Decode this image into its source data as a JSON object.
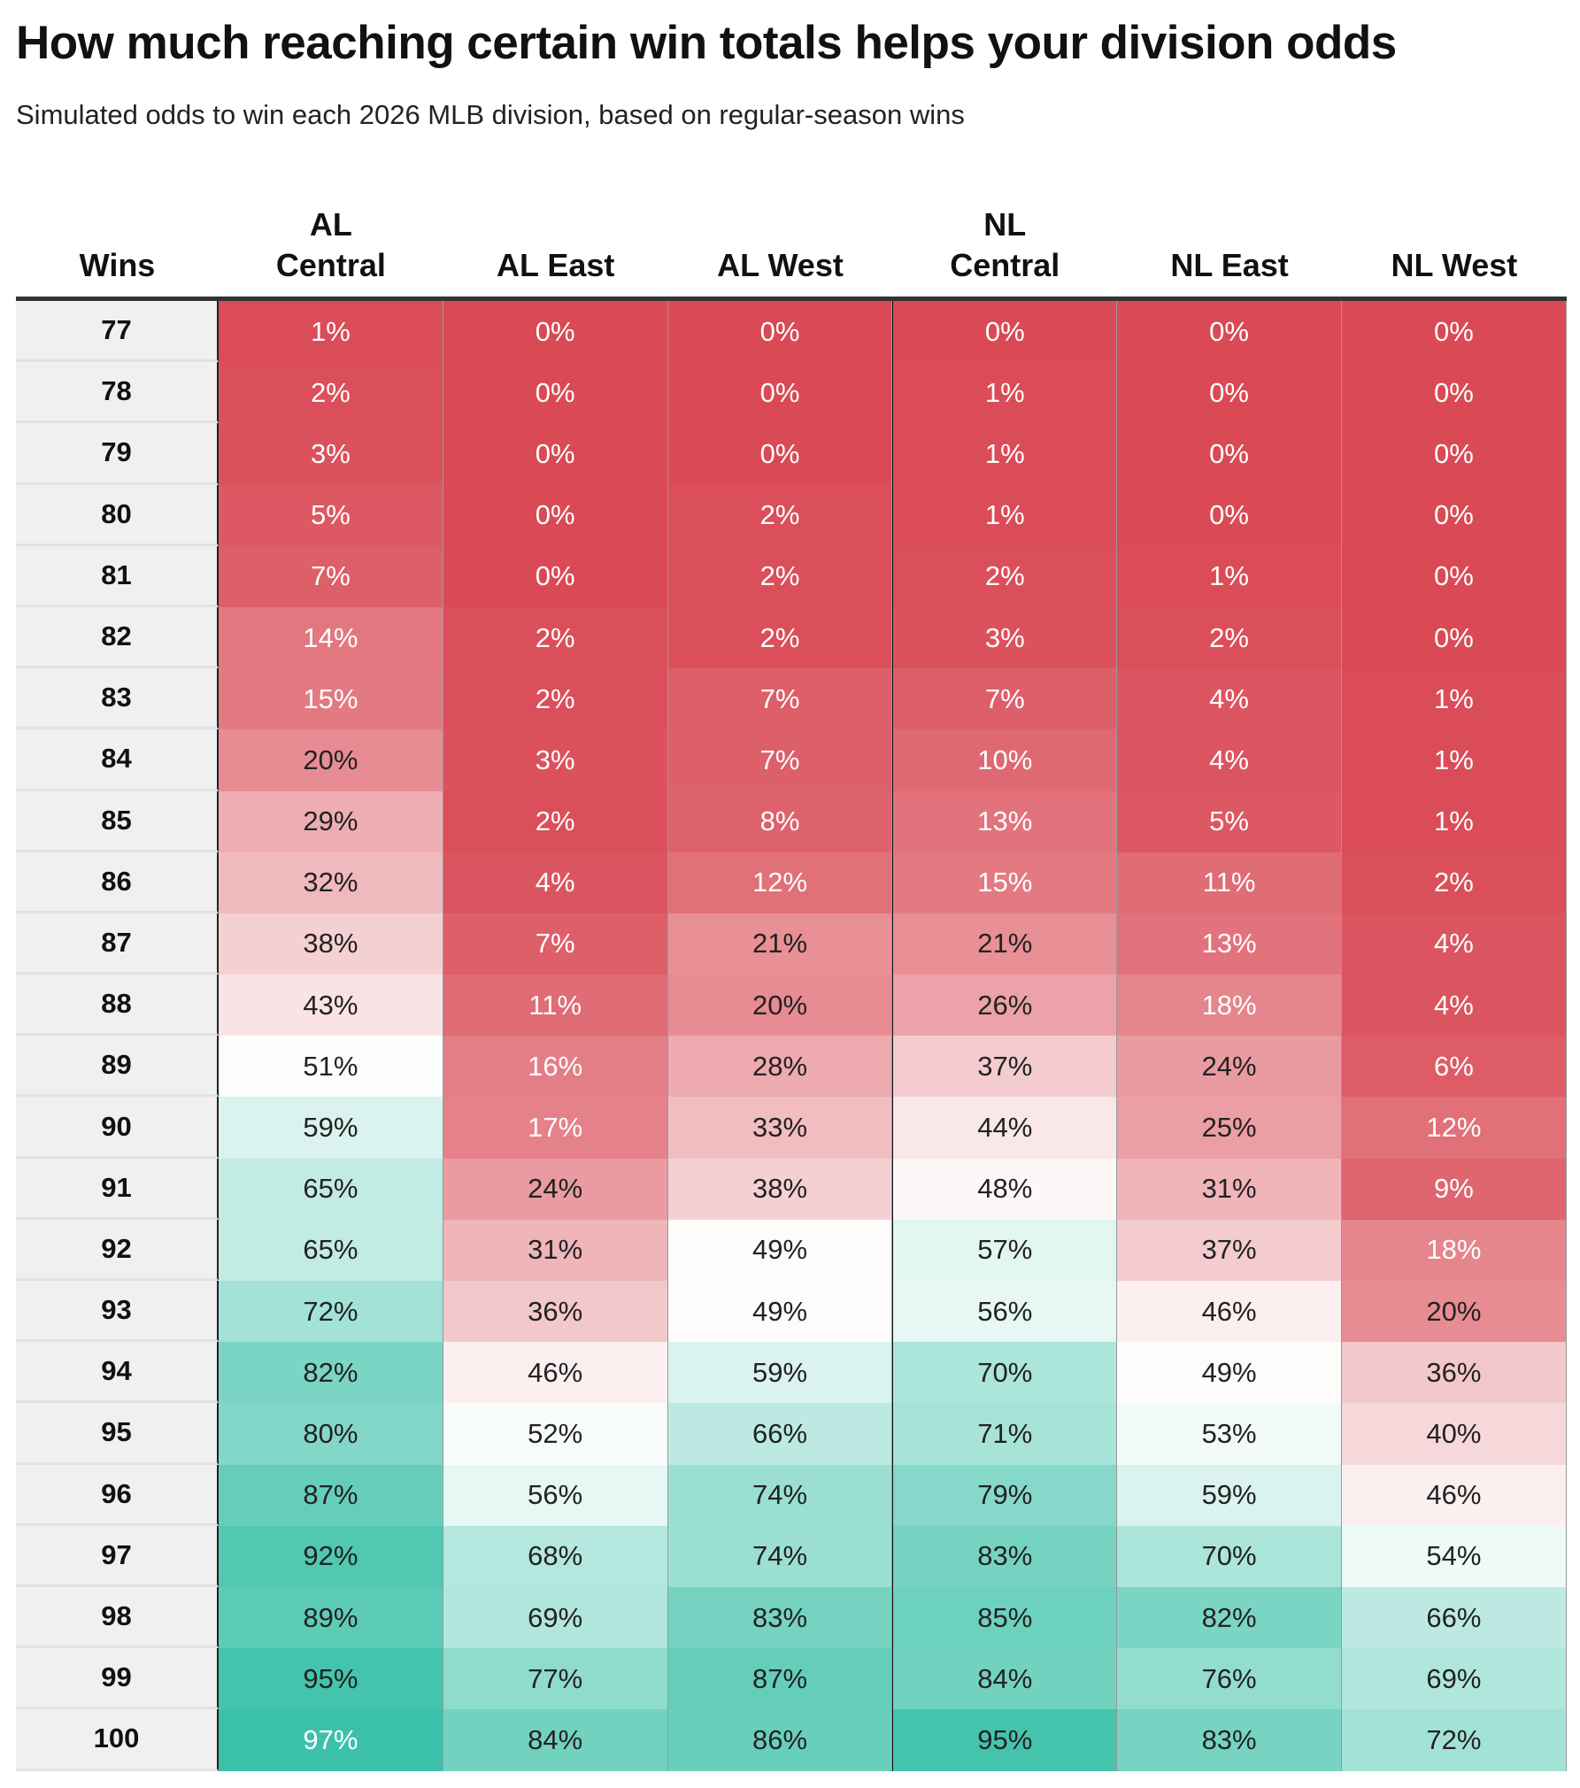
{
  "title": "How much reaching certain win totals helps your division odds",
  "subtitle": "Simulated odds to win each 2026 MLB division, based on regular-season wins",
  "colors": {
    "low": "#d94a55",
    "mid": "#ffffff",
    "high": "#2fbda3"
  },
  "chart_data": {
    "type": "table",
    "title": "How much reaching certain win totals helps your division odds",
    "row_header": "Wins",
    "columns": [
      {
        "line1": "AL",
        "line2": "Central"
      },
      {
        "line1": "",
        "line2": "AL East"
      },
      {
        "line1": "",
        "line2": "AL West"
      },
      {
        "line1": "NL",
        "line2": "Central"
      },
      {
        "line1": "",
        "line2": "NL East"
      },
      {
        "line1": "",
        "line2": "NL West"
      }
    ],
    "rows": [
      {
        "wins": "77",
        "values": [
          1,
          0,
          0,
          0,
          0,
          0
        ]
      },
      {
        "wins": "78",
        "values": [
          2,
          0,
          0,
          1,
          0,
          0
        ]
      },
      {
        "wins": "79",
        "values": [
          3,
          0,
          0,
          1,
          0,
          0
        ]
      },
      {
        "wins": "80",
        "values": [
          5,
          0,
          2,
          1,
          0,
          0
        ]
      },
      {
        "wins": "81",
        "values": [
          7,
          0,
          2,
          2,
          1,
          0
        ]
      },
      {
        "wins": "82",
        "values": [
          14,
          2,
          2,
          3,
          2,
          0
        ]
      },
      {
        "wins": "83",
        "values": [
          15,
          2,
          7,
          7,
          4,
          1
        ]
      },
      {
        "wins": "84",
        "values": [
          20,
          3,
          7,
          10,
          4,
          1
        ]
      },
      {
        "wins": "85",
        "values": [
          29,
          2,
          8,
          13,
          5,
          1
        ]
      },
      {
        "wins": "86",
        "values": [
          32,
          4,
          12,
          15,
          11,
          2
        ]
      },
      {
        "wins": "87",
        "values": [
          38,
          7,
          21,
          21,
          13,
          4
        ]
      },
      {
        "wins": "88",
        "values": [
          43,
          11,
          20,
          26,
          18,
          4
        ]
      },
      {
        "wins": "89",
        "values": [
          51,
          16,
          28,
          37,
          24,
          6
        ]
      },
      {
        "wins": "90",
        "values": [
          59,
          17,
          33,
          44,
          25,
          12
        ]
      },
      {
        "wins": "91",
        "values": [
          65,
          24,
          38,
          48,
          31,
          9
        ]
      },
      {
        "wins": "92",
        "values": [
          65,
          31,
          49,
          57,
          37,
          18
        ]
      },
      {
        "wins": "93",
        "values": [
          72,
          36,
          49,
          56,
          46,
          20
        ]
      },
      {
        "wins": "94",
        "values": [
          82,
          46,
          59,
          70,
          49,
          36
        ]
      },
      {
        "wins": "95",
        "values": [
          80,
          52,
          66,
          71,
          53,
          40
        ]
      },
      {
        "wins": "96",
        "values": [
          87,
          56,
          74,
          79,
          59,
          46
        ]
      },
      {
        "wins": "97",
        "values": [
          92,
          68,
          74,
          83,
          70,
          54
        ]
      },
      {
        "wins": "98",
        "values": [
          89,
          69,
          83,
          85,
          82,
          66
        ]
      },
      {
        "wins": "99",
        "values": [
          95,
          77,
          87,
          84,
          76,
          69
        ]
      },
      {
        "wins": "100",
        "values": [
          97,
          84,
          86,
          95,
          83,
          72
        ]
      }
    ],
    "value_format": "{v}%"
  }
}
